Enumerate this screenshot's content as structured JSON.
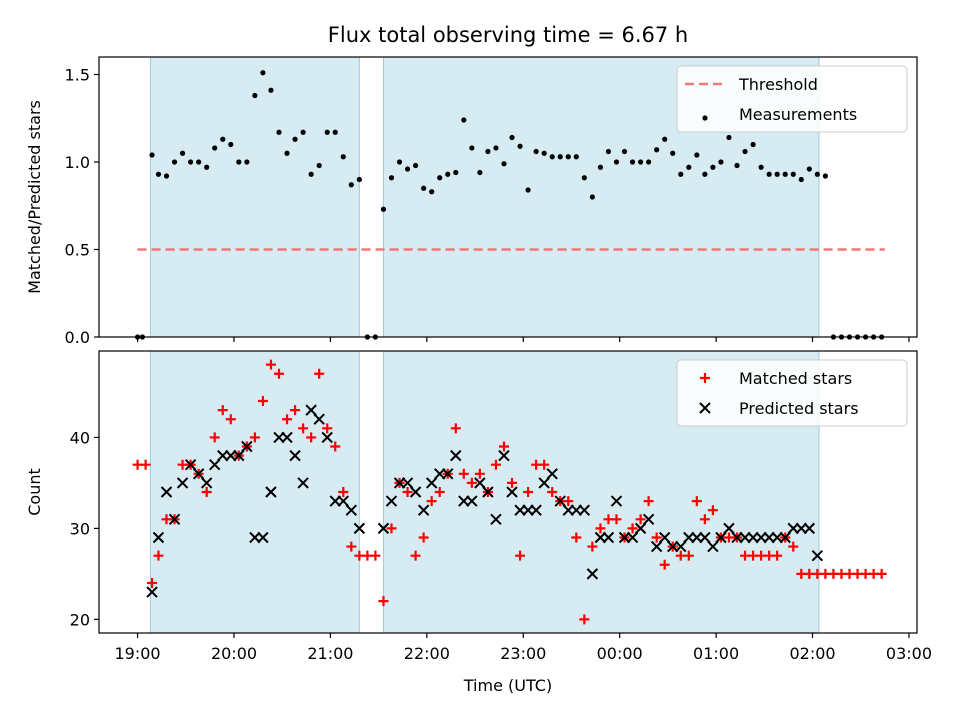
{
  "title": "Flux total observing time = 6.67 h",
  "chart_data": [
    {
      "panel": "top",
      "type": "scatter",
      "title": "Flux total observing time = 6.67 h",
      "xlabel": "",
      "ylabel": "Matched/Predicted stars",
      "xlim": [
        "18:36",
        "03:05"
      ],
      "ylim": [
        0.0,
        1.6
      ],
      "yticks": [
        "0.0",
        "0.5",
        "1.0",
        "1.5"
      ],
      "legend_position": "top-right",
      "shaded_intervals": [
        [
          "19:08",
          "21:18"
        ],
        [
          "21:33",
          "02:04"
        ]
      ],
      "series": [
        {
          "name": "Threshold",
          "style": "dashed-line",
          "color": "#f07878",
          "x": [
            "19:00",
            "02:45"
          ],
          "y": [
            0.5,
            0.5
          ]
        },
        {
          "name": "Measurements",
          "style": "dot",
          "color": "#000000",
          "x": [
            "19:00",
            "19:03",
            "19:09",
            "19:13",
            "19:18",
            "19:23",
            "19:28",
            "19:33",
            "19:38",
            "19:43",
            "19:48",
            "19:53",
            "19:58",
            "20:03",
            "20:08",
            "20:13",
            "20:18",
            "20:23",
            "20:28",
            "20:33",
            "20:38",
            "20:43",
            "20:48",
            "20:53",
            "20:58",
            "21:03",
            "21:08",
            "21:13",
            "21:18",
            "21:23",
            "21:28",
            "21:33",
            "21:38",
            "21:43",
            "21:48",
            "21:53",
            "21:58",
            "22:03",
            "22:08",
            "22:13",
            "22:18",
            "22:23",
            "22:28",
            "22:33",
            "22:38",
            "22:43",
            "22:48",
            "22:53",
            "22:58",
            "23:03",
            "23:08",
            "23:13",
            "23:18",
            "23:23",
            "23:28",
            "23:33",
            "23:38",
            "23:43",
            "23:48",
            "23:53",
            "23:58",
            "00:03",
            "00:08",
            "00:13",
            "00:18",
            "00:23",
            "00:28",
            "00:33",
            "00:38",
            "00:43",
            "00:48",
            "00:53",
            "00:58",
            "01:03",
            "01:08",
            "01:13",
            "01:18",
            "01:23",
            "01:28",
            "01:33",
            "01:38",
            "01:43",
            "01:48",
            "01:53",
            "01:58",
            "02:03",
            "02:08",
            "02:13",
            "02:18",
            "02:23",
            "02:28",
            "02:33",
            "02:38",
            "02:43"
          ],
          "y": [
            0.0,
            0.0,
            1.04,
            0.93,
            0.92,
            1.0,
            1.05,
            1.0,
            1.0,
            0.97,
            1.08,
            1.13,
            1.1,
            1.0,
            1.0,
            1.38,
            1.51,
            1.41,
            1.17,
            1.05,
            1.13,
            1.17,
            0.93,
            0.98,
            1.17,
            1.17,
            1.03,
            0.87,
            0.9,
            0.0,
            0.0,
            0.73,
            0.91,
            1.0,
            0.96,
            0.98,
            0.85,
            0.83,
            0.91,
            0.93,
            0.94,
            1.24,
            1.08,
            0.94,
            1.06,
            1.08,
            0.99,
            1.14,
            1.09,
            0.84,
            1.06,
            1.05,
            1.03,
            1.03,
            1.03,
            1.03,
            0.91,
            0.8,
            0.97,
            1.06,
            1.0,
            1.06,
            1.0,
            1.0,
            1.0,
            1.07,
            1.13,
            1.05,
            0.93,
            0.97,
            1.04,
            0.93,
            0.97,
            1.0,
            1.14,
            0.98,
            1.06,
            1.1,
            0.97,
            0.93,
            0.93,
            0.93,
            0.93,
            0.9,
            0.96,
            0.93,
            0.92,
            0.0,
            0.0,
            0.0,
            0.0,
            0.0,
            0.0,
            0.0
          ]
        }
      ]
    },
    {
      "panel": "bottom",
      "type": "scatter",
      "xlabel": "Time (UTC)",
      "ylabel": "Count",
      "xlim": [
        "18:36",
        "03:05"
      ],
      "ylim": [
        18.5,
        49.5
      ],
      "yticks": [
        "20",
        "30",
        "40"
      ],
      "xticks": [
        "19:00",
        "20:00",
        "21:00",
        "22:00",
        "23:00",
        "00:00",
        "01:00",
        "02:00",
        "03:00"
      ],
      "legend_position": "top-right",
      "shaded_intervals": [
        [
          "19:08",
          "21:18"
        ],
        [
          "21:33",
          "02:04"
        ]
      ],
      "series": [
        {
          "name": "Matched stars",
          "style": "plus",
          "color": "#ff0000",
          "x": [
            "19:00",
            "19:05",
            "19:09",
            "19:13",
            "19:18",
            "19:23",
            "19:28",
            "19:33",
            "19:38",
            "19:43",
            "19:48",
            "19:53",
            "19:58",
            "20:03",
            "20:08",
            "20:13",
            "20:18",
            "20:23",
            "20:28",
            "20:33",
            "20:38",
            "20:43",
            "20:48",
            "20:53",
            "20:58",
            "21:03",
            "21:08",
            "21:13",
            "21:18",
            "21:23",
            "21:28",
            "21:33",
            "21:38",
            "21:43",
            "21:48",
            "21:53",
            "21:58",
            "22:03",
            "22:08",
            "22:13",
            "22:18",
            "22:23",
            "22:28",
            "22:33",
            "22:38",
            "22:43",
            "22:48",
            "22:53",
            "22:58",
            "23:03",
            "23:08",
            "23:13",
            "23:18",
            "23:23",
            "23:28",
            "23:33",
            "23:38",
            "23:43",
            "23:48",
            "23:53",
            "23:58",
            "00:03",
            "00:08",
            "00:13",
            "00:18",
            "00:23",
            "00:28",
            "00:33",
            "00:38",
            "00:43",
            "00:48",
            "00:53",
            "00:58",
            "01:03",
            "01:08",
            "01:13",
            "01:18",
            "01:23",
            "01:28",
            "01:33",
            "01:38",
            "01:43",
            "01:48",
            "01:53",
            "01:58",
            "02:03",
            "02:08",
            "02:13",
            "02:18",
            "02:23",
            "02:28",
            "02:33",
            "02:38",
            "02:43"
          ],
          "y": [
            37,
            37,
            24,
            27,
            31,
            31,
            37,
            37,
            36,
            34,
            40,
            43,
            42,
            38,
            39,
            40,
            44,
            48,
            47,
            42,
            43,
            41,
            40,
            47,
            41,
            39,
            34,
            28,
            27,
            27,
            27,
            22,
            30,
            35,
            34,
            27,
            29,
            33,
            34,
            36,
            41,
            36,
            35,
            36,
            34,
            37,
            39,
            35,
            27,
            34,
            37,
            37,
            34,
            33,
            33,
            29,
            20,
            28,
            30,
            31,
            31,
            29,
            30,
            31,
            33,
            29,
            26,
            28,
            27,
            27,
            33,
            31,
            32,
            29,
            29,
            29,
            27,
            27,
            27,
            27,
            27,
            29,
            28,
            25,
            25,
            25,
            25,
            25,
            25,
            25,
            25,
            25,
            25,
            25
          ]
        },
        {
          "name": "Predicted stars",
          "style": "x",
          "color": "#000000",
          "x": [
            "19:09",
            "19:13",
            "19:18",
            "19:23",
            "19:28",
            "19:33",
            "19:38",
            "19:43",
            "19:48",
            "19:53",
            "19:58",
            "20:03",
            "20:08",
            "20:13",
            "20:18",
            "20:23",
            "20:28",
            "20:33",
            "20:38",
            "20:43",
            "20:48",
            "20:53",
            "20:58",
            "21:03",
            "21:08",
            "21:13",
            "21:18",
            "21:33",
            "21:38",
            "21:43",
            "21:48",
            "21:53",
            "21:58",
            "22:03",
            "22:08",
            "22:13",
            "22:18",
            "22:23",
            "22:28",
            "22:33",
            "22:38",
            "22:43",
            "22:48",
            "22:53",
            "22:58",
            "23:03",
            "23:08",
            "23:13",
            "23:18",
            "23:23",
            "23:28",
            "23:33",
            "23:38",
            "23:43",
            "23:48",
            "23:53",
            "23:58",
            "00:03",
            "00:08",
            "00:13",
            "00:18",
            "00:23",
            "00:28",
            "00:33",
            "00:38",
            "00:43",
            "00:48",
            "00:53",
            "00:58",
            "01:03",
            "01:08",
            "01:13",
            "01:18",
            "01:23",
            "01:28",
            "01:33",
            "01:38",
            "01:43",
            "01:48",
            "01:53",
            "01:58",
            "02:03"
          ],
          "y": [
            23,
            29,
            34,
            31,
            35,
            37,
            36,
            35,
            37,
            38,
            38,
            38,
            39,
            29,
            29,
            34,
            40,
            40,
            38,
            35,
            43,
            42,
            40,
            33,
            33,
            32,
            30,
            30,
            33,
            35,
            35,
            34,
            32,
            35,
            36,
            36,
            38,
            33,
            33,
            35,
            34,
            31,
            38,
            34,
            32,
            32,
            32,
            35,
            36,
            33,
            32,
            32,
            32,
            25,
            29,
            29,
            33,
            29,
            29,
            30,
            31,
            28,
            29,
            28,
            28,
            29,
            29,
            29,
            28,
            29,
            30,
            29,
            29,
            29,
            29,
            29,
            29,
            29,
            30,
            30,
            30,
            27
          ]
        }
      ]
    }
  ]
}
